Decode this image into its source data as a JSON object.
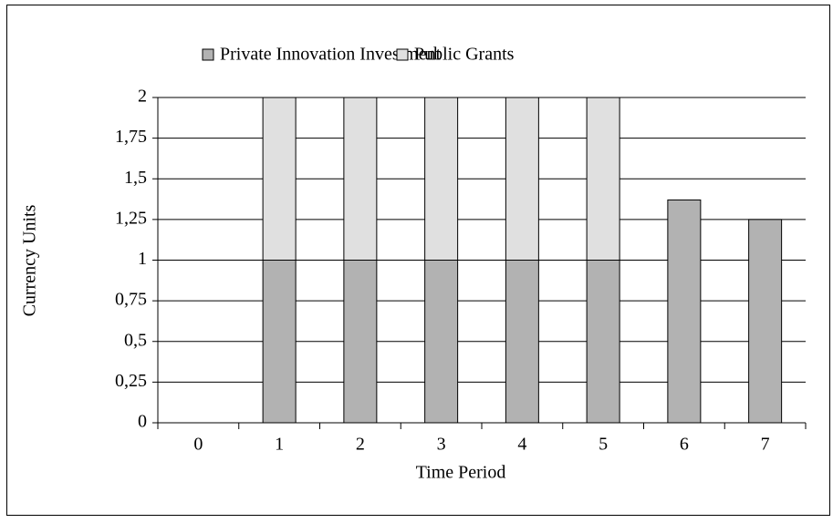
{
  "chart_data": {
    "type": "bar",
    "stacked": true,
    "x_label": "Time Period",
    "y_label": "Currency Units",
    "categories": [
      "0",
      "1",
      "2",
      "3",
      "4",
      "5",
      "6",
      "7"
    ],
    "series": [
      {
        "name": "Private Innovation Investment",
        "color": "#b2b2b2",
        "values": [
          0,
          1,
          1,
          1,
          1,
          1,
          1.37,
          1.25
        ]
      },
      {
        "name": "Public Grants",
        "color": "#e0e0e0",
        "values": [
          0,
          1,
          1,
          1,
          1,
          1,
          0,
          0
        ]
      }
    ],
    "ylim": [
      0,
      2
    ],
    "yticks": [
      0,
      {
        "value": 0.25,
        "label": "0,25"
      },
      {
        "value": 0.5,
        "label": "0,5"
      },
      {
        "value": 0.75,
        "label": "0,75"
      },
      1,
      {
        "value": 1.25,
        "label": "1,25"
      },
      {
        "value": 1.5,
        "label": "1,5"
      },
      {
        "value": 1.75,
        "label": "1,75"
      },
      2
    ],
    "grid": true,
    "legend": "top"
  }
}
